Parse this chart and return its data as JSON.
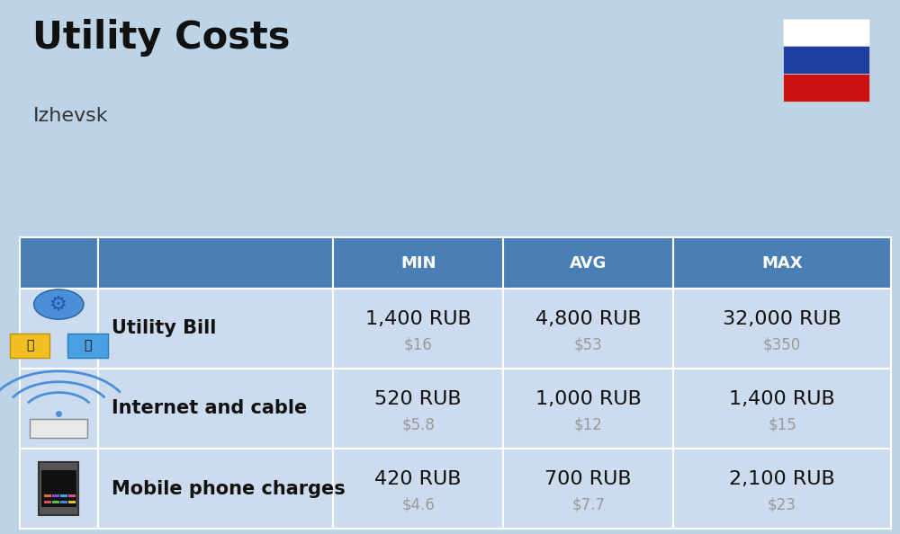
{
  "title": "Utility Costs",
  "subtitle": "Izhevsk",
  "background_color": "#bdd4e7",
  "header_bg_color": "#4a7fb5",
  "header_text_color": "#ffffff",
  "cell_bg_color": "#ccdcee",
  "cell_text_color": "#111111",
  "usd_text_color": "#999999",
  "headers": [
    "MIN",
    "AVG",
    "MAX"
  ],
  "rows": [
    {
      "label": "Utility Bill",
      "min_rub": "1,400 RUB",
      "min_usd": "$16",
      "avg_rub": "4,800 RUB",
      "avg_usd": "$53",
      "max_rub": "32,000 RUB",
      "max_usd": "$350",
      "icon": "utility"
    },
    {
      "label": "Internet and cable",
      "min_rub": "520 RUB",
      "min_usd": "$5.8",
      "avg_rub": "1,000 RUB",
      "avg_usd": "$12",
      "max_rub": "1,400 RUB",
      "max_usd": "$15",
      "icon": "internet"
    },
    {
      "label": "Mobile phone charges",
      "min_rub": "420 RUB",
      "min_usd": "$4.6",
      "avg_rub": "700 RUB",
      "avg_usd": "$7.7",
      "max_rub": "2,100 RUB",
      "max_usd": "$23",
      "icon": "mobile"
    }
  ],
  "flag_colors": [
    "#ffffff",
    "#1e3fa0",
    "#cc1111"
  ],
  "title_fontsize": 30,
  "subtitle_fontsize": 16,
  "header_fontsize": 13,
  "rub_fontsize": 16,
  "usd_fontsize": 12,
  "label_fontsize": 15
}
